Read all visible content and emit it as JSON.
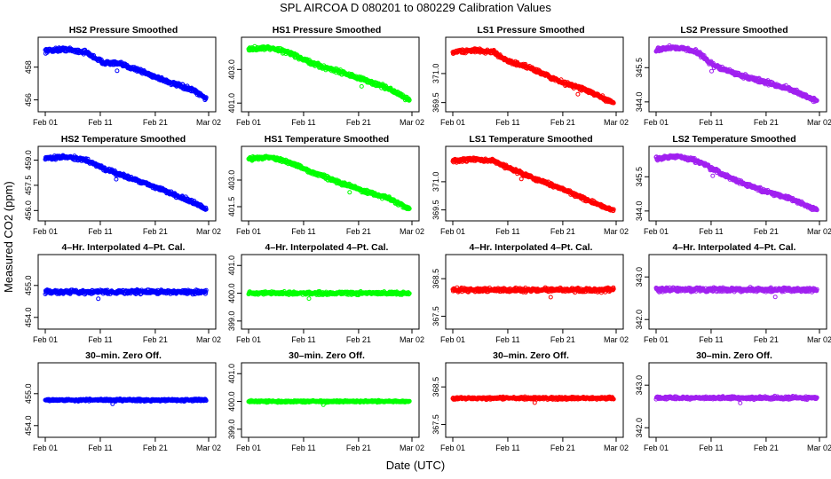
{
  "title": "SPL   AIRCOA D   080201 to 080229   Calibration Values",
  "xlabel": "Date (UTC)",
  "ylabel": "Measured CO2 (ppm)",
  "colors": {
    "HS2": "#0000ff",
    "HS1": "#00ff00",
    "LS1": "#ff0000",
    "LS2": "#a020f0"
  },
  "chart_data": [
    {
      "type": "scatter",
      "title": "HS2 Pressure Smoothed",
      "series": "HS2",
      "xticks": [
        "Feb 01",
        "Feb 11",
        "Feb 21",
        "Mar 02"
      ],
      "yticks": [
        "456",
        "458"
      ],
      "ylim": [
        455.6,
        459.5
      ],
      "trend": [
        [
          0,
          459.0
        ],
        [
          0.12,
          459.1
        ],
        [
          0.25,
          458.9
        ],
        [
          0.35,
          458.3
        ],
        [
          0.45,
          458.2
        ],
        [
          0.55,
          457.9
        ],
        [
          0.65,
          457.5
        ],
        [
          0.78,
          457.0
        ],
        [
          0.9,
          456.6
        ],
        [
          1,
          456.0
        ]
      ],
      "noise": 0.18
    },
    {
      "type": "scatter",
      "title": "HS1 Pressure Smoothed",
      "series": "HS1",
      "xticks": [
        "Feb 01",
        "Feb 11",
        "Feb 21",
        "Mar 02"
      ],
      "yticks": [
        "401.0",
        "403.0"
      ],
      "ylim": [
        400.8,
        404.6
      ],
      "trend": [
        [
          0,
          404.2
        ],
        [
          0.12,
          404.3
        ],
        [
          0.25,
          404.0
        ],
        [
          0.4,
          403.3
        ],
        [
          0.55,
          402.9
        ],
        [
          0.7,
          402.4
        ],
        [
          0.85,
          401.9
        ],
        [
          1,
          401.1
        ]
      ],
      "noise": 0.18
    },
    {
      "type": "scatter",
      "title": "LS1 Pressure Smoothed",
      "series": "LS1",
      "xticks": [
        "Feb 01",
        "Feb 11",
        "Feb 21",
        "Mar 02"
      ],
      "yticks": [
        "369.5",
        "371.0"
      ],
      "ylim": [
        369.3,
        372.6
      ],
      "trend": [
        [
          0,
          372.1
        ],
        [
          0.12,
          372.2
        ],
        [
          0.25,
          372.1
        ],
        [
          0.35,
          371.6
        ],
        [
          0.5,
          371.2
        ],
        [
          0.65,
          370.6
        ],
        [
          0.8,
          370.2
        ],
        [
          1,
          369.4
        ]
      ],
      "noise": 0.15
    },
    {
      "type": "scatter",
      "title": "LS2 Pressure Smoothed",
      "series": "LS2",
      "xticks": [
        "Feb 01",
        "Feb 11",
        "Feb 21",
        "Mar 02"
      ],
      "yticks": [
        "344.0",
        "345.5"
      ],
      "ylim": [
        343.8,
        346.6
      ],
      "trend": [
        [
          0,
          346.3
        ],
        [
          0.12,
          346.4
        ],
        [
          0.25,
          346.2
        ],
        [
          0.35,
          345.6
        ],
        [
          0.5,
          345.2
        ],
        [
          0.65,
          344.9
        ],
        [
          0.8,
          344.6
        ],
        [
          1,
          344.0
        ]
      ],
      "noise": 0.13
    },
    {
      "type": "scatter",
      "title": "HS2 Temperature Smoothed",
      "series": "HS2",
      "xticks": [
        "Feb 01",
        "Feb 11",
        "Feb 21",
        "Mar 02"
      ],
      "yticks": [
        "456.0",
        "457.5",
        "459.0"
      ],
      "ylim": [
        455.7,
        459.5
      ],
      "trend": [
        [
          0,
          459.1
        ],
        [
          0.12,
          459.2
        ],
        [
          0.25,
          459.0
        ],
        [
          0.38,
          458.4
        ],
        [
          0.5,
          458.0
        ],
        [
          0.62,
          457.6
        ],
        [
          0.75,
          457.1
        ],
        [
          0.88,
          456.6
        ],
        [
          1,
          456.0
        ]
      ],
      "noise": 0.15
    },
    {
      "type": "scatter",
      "title": "HS1 Temperature Smoothed",
      "series": "HS1",
      "xticks": [
        "Feb 01",
        "Feb 11",
        "Feb 21",
        "Mar 02"
      ],
      "yticks": [
        "401.5",
        "403.0"
      ],
      "ylim": [
        401.0,
        404.6
      ],
      "trend": [
        [
          0,
          404.2
        ],
        [
          0.12,
          404.3
        ],
        [
          0.25,
          404.0
        ],
        [
          0.4,
          403.4
        ],
        [
          0.55,
          402.9
        ],
        [
          0.7,
          402.4
        ],
        [
          0.85,
          402.0
        ],
        [
          1,
          401.3
        ]
      ],
      "noise": 0.15
    },
    {
      "type": "scatter",
      "title": "LS1 Temperature Smoothed",
      "series": "LS1",
      "xticks": [
        "Feb 01",
        "Feb 11",
        "Feb 21",
        "Mar 02"
      ],
      "yticks": [
        "369.5",
        "371.0"
      ],
      "ylim": [
        369.2,
        372.6
      ],
      "trend": [
        [
          0,
          372.1
        ],
        [
          0.12,
          372.2
        ],
        [
          0.25,
          372.1
        ],
        [
          0.38,
          371.6
        ],
        [
          0.52,
          371.1
        ],
        [
          0.65,
          370.7
        ],
        [
          0.8,
          370.1
        ],
        [
          1,
          369.4
        ]
      ],
      "noise": 0.13
    },
    {
      "type": "scatter",
      "title": "LS2 Temperature Smoothed",
      "series": "LS2",
      "xticks": [
        "Feb 01",
        "Feb 11",
        "Feb 21",
        "Mar 02"
      ],
      "yticks": [
        "344.0",
        "345.5"
      ],
      "ylim": [
        343.8,
        346.6
      ],
      "trend": [
        [
          0,
          346.3
        ],
        [
          0.12,
          346.4
        ],
        [
          0.25,
          346.2
        ],
        [
          0.38,
          345.7
        ],
        [
          0.5,
          345.3
        ],
        [
          0.65,
          344.9
        ],
        [
          0.8,
          344.6
        ],
        [
          1,
          344.0
        ]
      ],
      "noise": 0.12
    },
    {
      "type": "scatter",
      "title": "4–Hr. Interpolated 4–Pt. Cal.",
      "series": "HS2",
      "xticks": [
        "Feb 01",
        "Feb 11",
        "Feb 21",
        "Mar 02"
      ],
      "yticks": [
        "454.0",
        "455.0"
      ],
      "ylim": [
        453.8,
        455.8
      ],
      "trend": [
        [
          0,
          454.8
        ],
        [
          1,
          454.8
        ]
      ],
      "noise": 0.09
    },
    {
      "type": "scatter",
      "title": "4–Hr. Interpolated 4–Pt. Cal.",
      "series": "HS1",
      "xticks": [
        "Feb 01",
        "Feb 11",
        "Feb 21",
        "Mar 02"
      ],
      "yticks": [
        "399.0",
        "400.0",
        "401.0"
      ],
      "ylim": [
        398.9,
        401.2
      ],
      "trend": [
        [
          0,
          400.0
        ],
        [
          1,
          400.0
        ]
      ],
      "noise": 0.08
    },
    {
      "type": "scatter",
      "title": "4–Hr. Interpolated 4–Pt. Cal.",
      "series": "LS1",
      "xticks": [
        "Feb 01",
        "Feb 11",
        "Feb 21",
        "Mar 02"
      ],
      "yticks": [
        "367.5",
        "368.5"
      ],
      "ylim": [
        367.3,
        369.0
      ],
      "trend": [
        [
          0,
          368.2
        ],
        [
          1,
          368.2
        ]
      ],
      "noise": 0.08
    },
    {
      "type": "scatter",
      "title": "4–Hr. Interpolated 4–Pt. Cal.",
      "series": "LS2",
      "xticks": [
        "Feb 01",
        "Feb 11",
        "Feb 21",
        "Mar 02"
      ],
      "yticks": [
        "342.0",
        "343.0"
      ],
      "ylim": [
        341.9,
        343.4
      ],
      "trend": [
        [
          0,
          342.7
        ],
        [
          1,
          342.7
        ]
      ],
      "noise": 0.07
    },
    {
      "type": "scatter",
      "title": "30–min. Zero Off.",
      "series": "HS2",
      "xticks": [
        "Feb 01",
        "Feb 11",
        "Feb 21",
        "Mar 02"
      ],
      "yticks": [
        "454.0",
        "455.0"
      ],
      "ylim": [
        453.8,
        455.8
      ],
      "trend": [
        [
          0,
          454.8
        ],
        [
          1,
          454.8
        ]
      ],
      "noise": 0.05
    },
    {
      "type": "scatter",
      "title": "30–min. Zero Off.",
      "series": "HS1",
      "xticks": [
        "Feb 01",
        "Feb 11",
        "Feb 21",
        "Mar 02"
      ],
      "yticks": [
        "399.0",
        "400.0",
        "401.0"
      ],
      "ylim": [
        398.9,
        401.2
      ],
      "trend": [
        [
          0,
          400.0
        ],
        [
          1,
          400.0
        ]
      ],
      "noise": 0.05
    },
    {
      "type": "scatter",
      "title": "30–min. Zero Off.",
      "series": "LS1",
      "xticks": [
        "Feb 01",
        "Feb 11",
        "Feb 21",
        "Mar 02"
      ],
      "yticks": [
        "367.5",
        "368.5"
      ],
      "ylim": [
        367.3,
        369.0
      ],
      "trend": [
        [
          0,
          368.2
        ],
        [
          1,
          368.2
        ]
      ],
      "noise": 0.05
    },
    {
      "type": "scatter",
      "title": "30–min. Zero Off.",
      "series": "LS2",
      "xticks": [
        "Feb 01",
        "Feb 11",
        "Feb 21",
        "Mar 02"
      ],
      "yticks": [
        "342.0",
        "343.0"
      ],
      "ylim": [
        341.9,
        343.4
      ],
      "trend": [
        [
          0,
          342.7
        ],
        [
          1,
          342.7
        ]
      ],
      "noise": 0.05
    }
  ]
}
